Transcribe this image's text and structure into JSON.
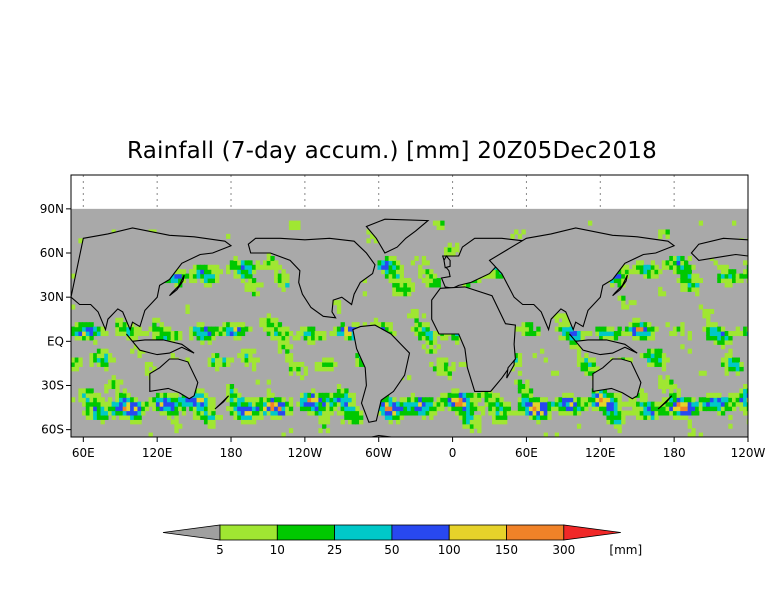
{
  "title": "Rainfall (7-day accum.) [mm] 20Z05Dec2018",
  "map": {
    "lat_labels": [
      "90N",
      "60N",
      "30N",
      "EQ",
      "30S",
      "60S"
    ],
    "lat_values": [
      90,
      60,
      30,
      0,
      -30,
      -60
    ],
    "lon_labels": [
      "60E",
      "120E",
      "180",
      "120W",
      "60W",
      "0",
      "60E",
      "120E",
      "180",
      "120W"
    ],
    "lon_values": [
      60,
      120,
      180,
      240,
      300,
      360,
      420,
      480,
      540,
      600
    ],
    "lon_range": [
      50,
      600
    ],
    "lat_range": [
      -65,
      113
    ],
    "data_lat_range": [
      -65,
      90
    ],
    "no_data_color": "#a9a9a9"
  },
  "colorbar": {
    "unit": "[mm]",
    "thresholds": [
      "5",
      "10",
      "25",
      "50",
      "100",
      "150",
      "300"
    ],
    "colors": [
      "#a0a0a0",
      "#a0e632",
      "#00c800",
      "#00c8c8",
      "#2848f0",
      "#e6d22a",
      "#f08228",
      "#f02828"
    ]
  }
}
